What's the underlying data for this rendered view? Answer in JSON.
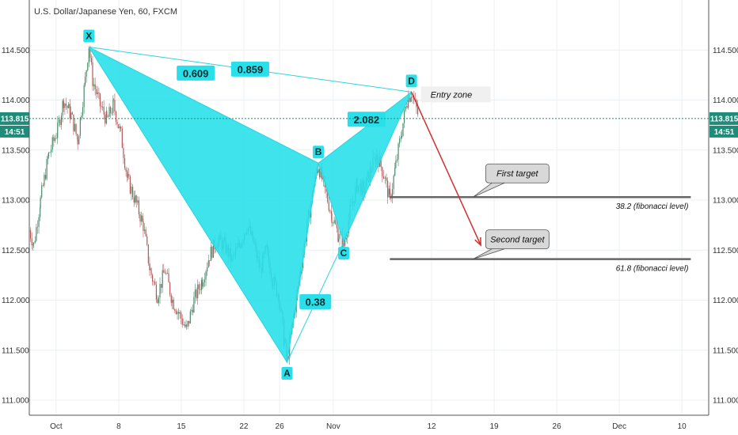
{
  "header": {
    "title": "U.S. Dollar/Japanese Yen, 60, FXCM"
  },
  "colors": {
    "pattern_fill": "#29e0ea",
    "pattern_line": "#2ad4de",
    "bull_candle": "#4a8c6c",
    "bear_candle": "#b25a5a",
    "current_price": "#1f8c7a",
    "arrow": "#d32f2f",
    "target_line": "#666666"
  },
  "current_price": {
    "value": 113.815,
    "label": "113.815",
    "timer": "14:51"
  },
  "chart_data": {
    "type": "line",
    "title": "U.S. Dollar/Japanese Yen, 60, FXCM",
    "ylim": [
      110.85,
      115.0
    ],
    "y_ticks": [
      "111.000",
      "111.500",
      "112.000",
      "112.500",
      "113.000",
      "113.500",
      "114.000",
      "114.500"
    ],
    "x_range_days": [
      "2018-09-28",
      "2018-12-13"
    ],
    "x_ticks": [
      {
        "date": "2018-10-01",
        "label": "Oct"
      },
      {
        "date": "2018-10-08",
        "label": "8"
      },
      {
        "date": "2018-10-15",
        "label": "15"
      },
      {
        "date": "2018-10-22",
        "label": "22"
      },
      {
        "date": "2018-10-26",
        "label": "26"
      },
      {
        "date": "2018-11-01",
        "label": "Nov"
      },
      {
        "date": "2018-11-12",
        "label": "12"
      },
      {
        "date": "2018-11-19",
        "label": "19"
      },
      {
        "date": "2018-11-26",
        "label": "26"
      },
      {
        "date": "2018-12-03",
        "label": "Dec"
      },
      {
        "date": "2018-12-10",
        "label": "10"
      }
    ],
    "price_path": [
      [
        "2018-09-28T00",
        112.7
      ],
      [
        "2018-09-28T12",
        112.55
      ],
      [
        "2018-09-29T06",
        113.0
      ],
      [
        "2018-09-30T04",
        113.45
      ],
      [
        "2018-10-01T04",
        113.7
      ],
      [
        "2018-10-01T20",
        114.0
      ],
      [
        "2018-10-02T16",
        113.85
      ],
      [
        "2018-10-03T10",
        113.6
      ],
      [
        "2018-10-04T06",
        114.2
      ],
      [
        "2018-10-04T16",
        114.55
      ],
      [
        "2018-10-05T02",
        114.2
      ],
      [
        "2018-10-05T22",
        113.95
      ],
      [
        "2018-10-06T16",
        113.8
      ],
      [
        "2018-10-07T10",
        113.95
      ],
      [
        "2018-10-08T06",
        113.65
      ],
      [
        "2018-10-09T00",
        113.2
      ],
      [
        "2018-10-09T20",
        113.0
      ],
      [
        "2018-10-10T18",
        112.75
      ],
      [
        "2018-10-11T12",
        112.3
      ],
      [
        "2018-10-12T08",
        112.05
      ],
      [
        "2018-10-13T04",
        112.3
      ],
      [
        "2018-10-14T00",
        112.0
      ],
      [
        "2018-10-14T20",
        111.85
      ],
      [
        "2018-10-15T14",
        111.7
      ],
      [
        "2018-10-16T10",
        112.0
      ],
      [
        "2018-10-17T08",
        112.2
      ],
      [
        "2018-10-18T04",
        112.45
      ],
      [
        "2018-10-19T00",
        112.6
      ],
      [
        "2018-10-19T20",
        112.55
      ],
      [
        "2018-10-20T16",
        112.4
      ],
      [
        "2018-10-21T12",
        112.55
      ],
      [
        "2018-10-22T08",
        112.75
      ],
      [
        "2018-10-23T00",
        112.6
      ],
      [
        "2018-10-23T20",
        112.3
      ],
      [
        "2018-10-24T12",
        112.5
      ],
      [
        "2018-10-25T06",
        112.2
      ],
      [
        "2018-10-25T22",
        112.05
      ],
      [
        "2018-10-26T12",
        111.6
      ],
      [
        "2018-10-26T20",
        111.4
      ],
      [
        "2018-10-27T14",
        111.85
      ],
      [
        "2018-10-28T08",
        112.3
      ],
      [
        "2018-10-29T02",
        112.75
      ],
      [
        "2018-10-29T20",
        113.15
      ],
      [
        "2018-10-30T08",
        113.35
      ],
      [
        "2018-10-31T02",
        113.1
      ],
      [
        "2018-10-31T20",
        112.85
      ],
      [
        "2018-11-01T14",
        112.65
      ],
      [
        "2018-11-02T04",
        112.55
      ],
      [
        "2018-11-02T22",
        112.9
      ],
      [
        "2018-11-03T16",
        113.15
      ],
      [
        "2018-11-04T10",
        113.1
      ],
      [
        "2018-11-05T04",
        113.3
      ],
      [
        "2018-11-05T22",
        113.45
      ],
      [
        "2018-11-06T16",
        113.25
      ],
      [
        "2018-11-07T08",
        113.0
      ],
      [
        "2018-11-08T00",
        113.35
      ],
      [
        "2018-11-08T16",
        113.7
      ],
      [
        "2018-11-09T06",
        114.0
      ],
      [
        "2018-11-09T18",
        114.08
      ],
      [
        "2018-11-10T04",
        113.95
      ],
      [
        "2018-11-10T14",
        113.82
      ]
    ]
  },
  "harmonic_pattern": {
    "points": [
      {
        "name": "X",
        "date": "2018-10-04T16",
        "price": 114.53
      },
      {
        "name": "A",
        "date": "2018-10-26T20",
        "price": 111.38
      },
      {
        "name": "B",
        "date": "2018-10-30T08",
        "price": 113.37
      },
      {
        "name": "C",
        "date": "2018-11-02T04",
        "price": 112.58
      },
      {
        "name": "D",
        "date": "2018-11-09T18",
        "price": 114.08
      }
    ],
    "ratios": {
      "xd": "0.859",
      "xb": "0.609",
      "ac": "0.38",
      "bd": "2.082"
    },
    "entry_label": "Entry zone"
  },
  "targets": [
    {
      "label": "First target",
      "price": 113.03,
      "fib_label": "38.2 (fibonacci level)"
    },
    {
      "label": "Second target",
      "price": 112.41,
      "fib_label": "61.8 (fibonacci level)"
    }
  ],
  "projection": {
    "from_date": "2018-11-09T18",
    "from_price": 114.08,
    "to_date": "2018-11-17T12",
    "to_price": 112.55
  },
  "target_line_range": {
    "from_date": "2018-11-07T08",
    "to_date": "2018-12-11T00"
  }
}
